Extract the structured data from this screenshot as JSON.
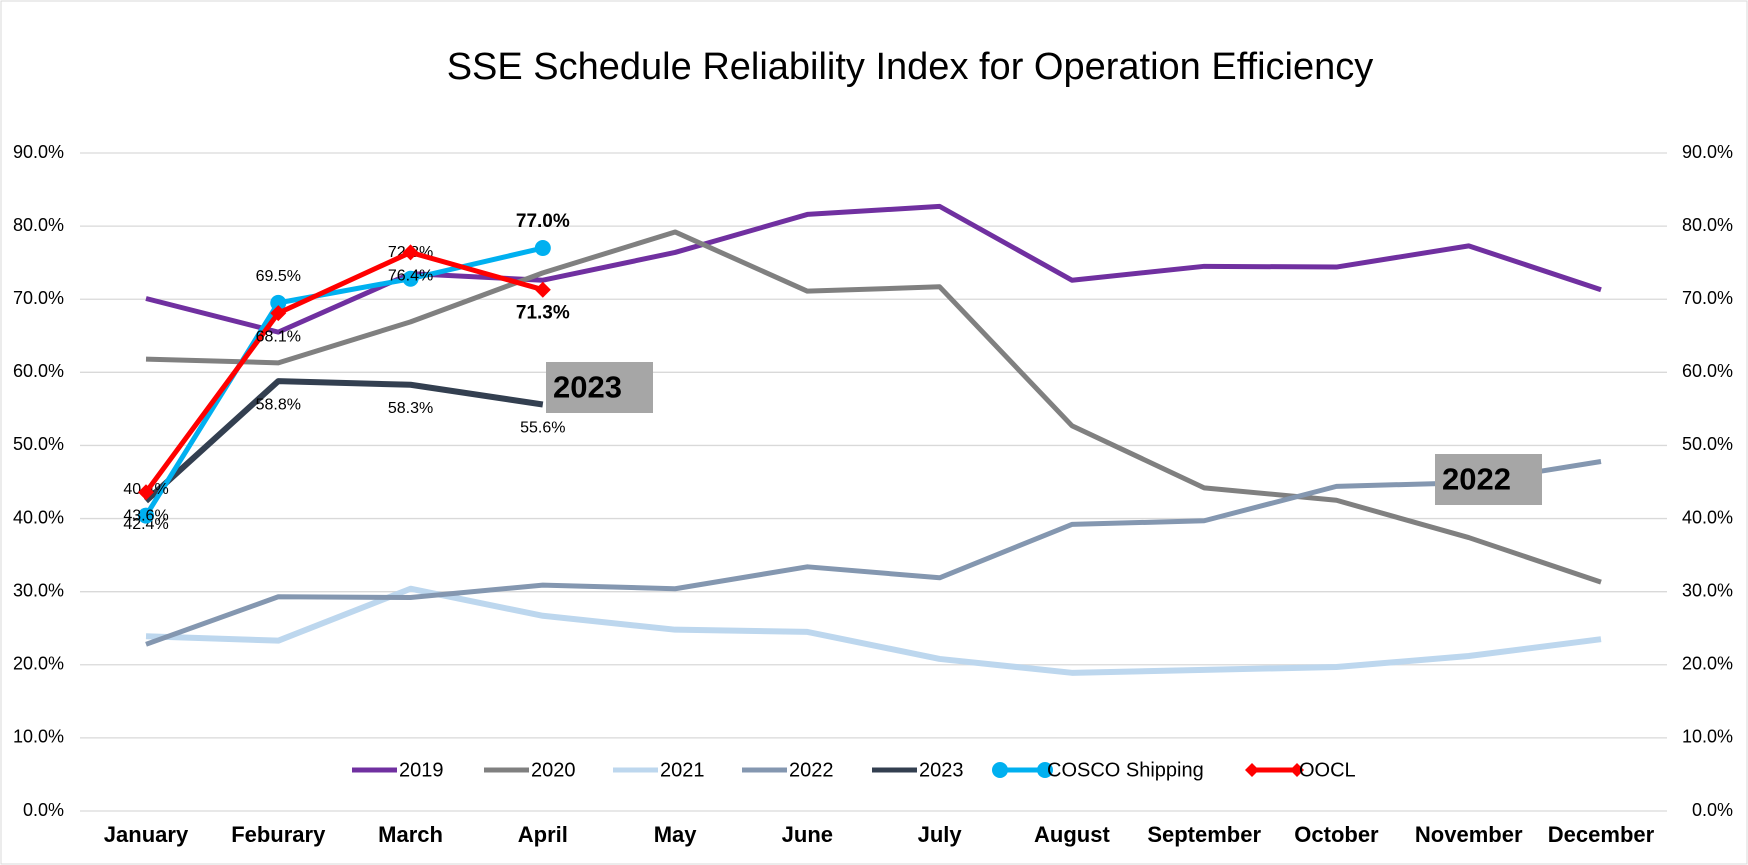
{
  "chart_data": {
    "type": "line",
    "title": "SSE Schedule Reliability Index for Operation Efficiency",
    "categories": [
      "January",
      "Feburary",
      "March",
      "April",
      "May",
      "June",
      "July",
      "August",
      "September",
      "October",
      "November",
      "December"
    ],
    "series": [
      {
        "name": "2019",
        "color": "#7030a0",
        "values": [
          70.1,
          65.5,
          73.5,
          72.6,
          76.4,
          81.6,
          82.7,
          72.6,
          74.5,
          74.4,
          77.3,
          71.3
        ]
      },
      {
        "name": "2020",
        "color": "#808080",
        "values": [
          61.8,
          61.3,
          66.9,
          73.6,
          79.2,
          71.1,
          71.7,
          52.7,
          44.2,
          42.5,
          37.4,
          31.3
        ]
      },
      {
        "name": "2021",
        "color": "#bdd7ee",
        "values": [
          23.9,
          23.3,
          30.4,
          26.7,
          24.8,
          24.5,
          20.8,
          18.9,
          19.3,
          19.7,
          21.2,
          23.5
        ]
      },
      {
        "name": "2022",
        "color": "#8497b0",
        "values": [
          22.8,
          29.3,
          29.2,
          30.9,
          30.4,
          33.4,
          31.9,
          39.2,
          39.7,
          44.4,
          44.9,
          47.8
        ]
      },
      {
        "name": "2023",
        "color": "#333f50",
        "values": [
          42.4,
          58.8,
          58.3,
          55.6,
          null,
          null,
          null,
          null,
          null,
          null,
          null,
          null
        ],
        "value_labels": [
          "42.4%",
          "58.8%",
          "58.3%",
          "55.6%",
          null,
          null,
          null,
          null,
          null,
          null,
          null,
          null
        ]
      },
      {
        "name": "COSCO Shipping",
        "color": "#00b0f0",
        "marker": "circle",
        "values": [
          40.4,
          69.5,
          72.8,
          77.0,
          null,
          null,
          null,
          null,
          null,
          null,
          null,
          null
        ],
        "value_labels": [
          "40.4%",
          "69.5%",
          "72.8%",
          "77.0%",
          null,
          null,
          null,
          null,
          null,
          null,
          null,
          null
        ]
      },
      {
        "name": "OOCL",
        "color": "#ff0000",
        "marker": "diamond",
        "values": [
          43.6,
          68.1,
          76.4,
          71.3,
          null,
          null,
          null,
          null,
          null,
          null,
          null,
          null
        ],
        "value_labels": [
          "43.6%",
          "68.1%",
          "76.4%",
          "71.3%",
          null,
          null,
          null,
          null,
          null,
          null,
          null,
          null
        ]
      }
    ],
    "annotations": [
      "2023",
      "2022"
    ],
    "ylim": [
      0,
      90
    ],
    "yticks": [
      {
        "value": 0,
        "label": "0.0%"
      },
      {
        "value": 10,
        "label": "10.0%"
      },
      {
        "value": 20,
        "label": "20.0%"
      },
      {
        "value": 30,
        "label": "30.0%"
      },
      {
        "value": 40,
        "label": "40.0%"
      },
      {
        "value": 50,
        "label": "50.0%"
      },
      {
        "value": 60,
        "label": "60.0%"
      },
      {
        "value": 70,
        "label": "70.0%"
      },
      {
        "value": 80,
        "label": "80.0%"
      },
      {
        "value": 90,
        "label": "90.0%"
      }
    ],
    "y2lim": [
      0,
      90
    ],
    "y2ticks": [
      {
        "value": 0,
        "label": "0.0%"
      },
      {
        "value": 10,
        "label": "10.0%"
      },
      {
        "value": 20,
        "label": "20.0%"
      },
      {
        "value": 30,
        "label": "30.0%"
      },
      {
        "value": 40,
        "label": "40.0%"
      },
      {
        "value": 50,
        "label": "50.0%"
      },
      {
        "value": 60,
        "label": "60.0%"
      },
      {
        "value": 70,
        "label": "70.0%"
      },
      {
        "value": 80,
        "label": "80.0%"
      },
      {
        "value": 90,
        "label": "90.0%"
      }
    ],
    "grid": true,
    "legend": "bottom"
  }
}
